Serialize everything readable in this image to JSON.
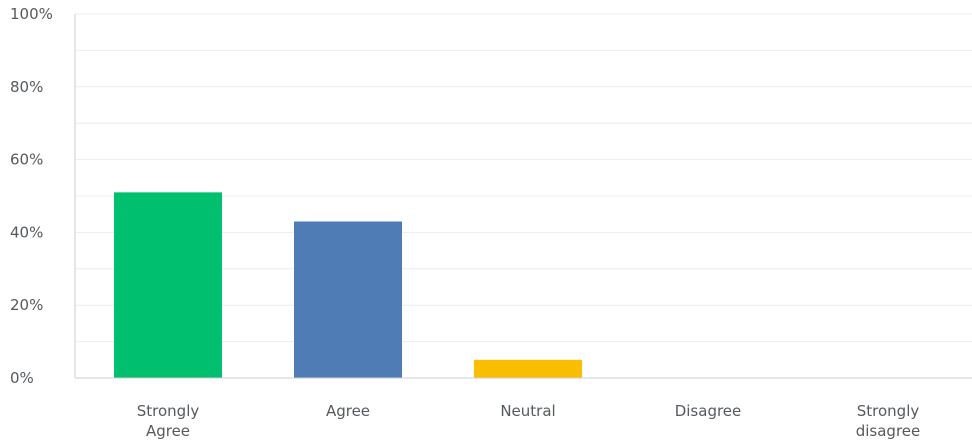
{
  "chart_data": {
    "type": "bar",
    "categories": [
      "Strongly Agree",
      "Agree",
      "Neutral",
      "Disagree",
      "Strongly disagree"
    ],
    "category_lines": [
      [
        "Strongly",
        "Agree"
      ],
      [
        "Agree"
      ],
      [
        "Neutral"
      ],
      [
        "Disagree"
      ],
      [
        "Strongly",
        "disagree"
      ]
    ],
    "values": [
      51,
      43,
      5,
      0,
      0
    ],
    "colors": [
      "#00bf6f",
      "#507cb6",
      "#f9be00",
      "#6bc8cd",
      "#ff8b4f"
    ],
    "ylim": [
      0,
      100
    ],
    "yticks": [
      0,
      20,
      40,
      60,
      80,
      100
    ],
    "ytick_labels": [
      "0%",
      "20%",
      "40%",
      "60%",
      "80%",
      "100%"
    ],
    "grid": true,
    "title": "",
    "xlabel": "",
    "ylabel": ""
  }
}
